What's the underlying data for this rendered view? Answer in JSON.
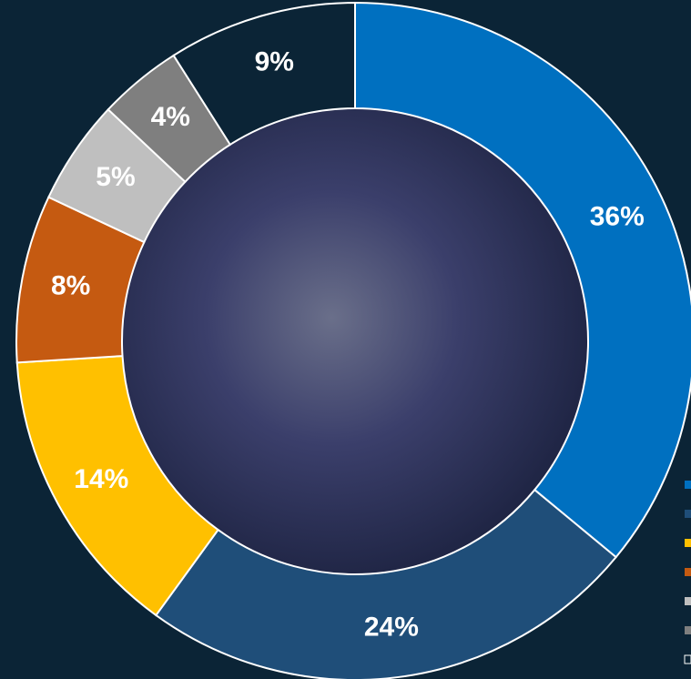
{
  "chart_data": {
    "type": "donut",
    "categories": [
      null,
      null,
      null,
      null,
      null,
      null,
      null
    ],
    "values": [
      36,
      24,
      14,
      8,
      5,
      4,
      9
    ],
    "value_labels": [
      "36%",
      "24%",
      "14%",
      "8%",
      "5%",
      "4%",
      "9%"
    ],
    "colors": [
      "#0070c0",
      "#1f4e79",
      "#ffc000",
      "#c55a11",
      "#bfbfbf",
      "#7f7f7f",
      "#0b2436"
    ]
  }
}
